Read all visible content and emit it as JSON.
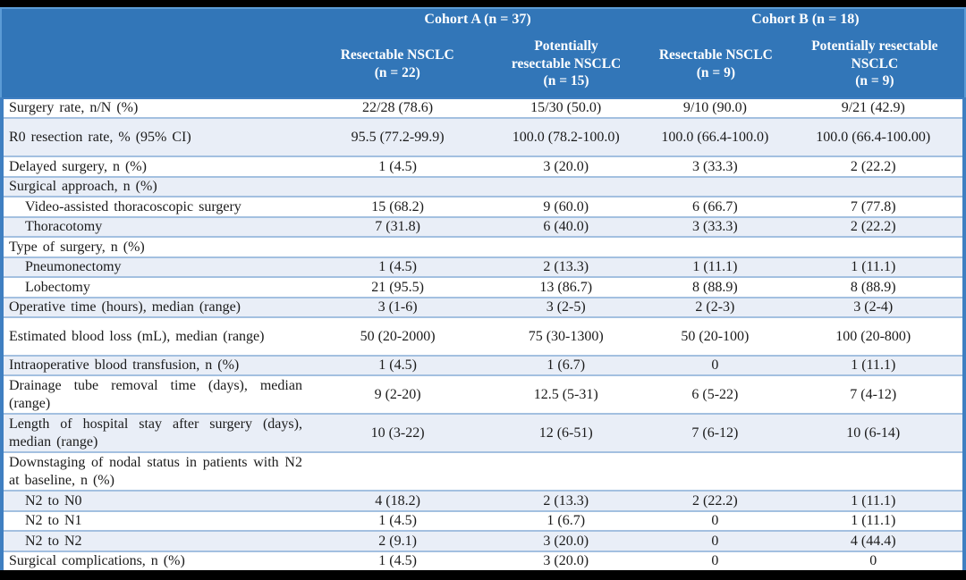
{
  "colors": {
    "header_bg": "#3276b8",
    "header_border": "#5b9bd5",
    "band_bg": "#e9eef7",
    "separator": "#a3c0e0",
    "side_border": "#3f7fc1",
    "frame": "#000000",
    "header_text": "#ffffff",
    "text": "#1b1b1b"
  },
  "table": {
    "header": {
      "cohort_a": "Cohort A (n = 37)",
      "cohort_b": "Cohort B (n = 18)",
      "columns": [
        "Resectable NSCLC\n(n = 22)",
        "Potentially\nresectable NSCLC\n(n = 15)",
        "Resectable NSCLC\n(n = 9)",
        "Potentially resectable\nNSCLC\n(n = 9)"
      ]
    },
    "rows": [
      {
        "label": "Surgery rate, n/N (%)",
        "indent": false,
        "tall": false,
        "values": [
          "22/28 (78.6)",
          "15/30 (50.0)",
          "9/10 (90.0)",
          "9/21 (42.9)"
        ]
      },
      {
        "label": "R0 resection rate, % (95% CI)",
        "indent": false,
        "tall": true,
        "values": [
          "95.5 (77.2-99.9)",
          "100.0 (78.2-100.0)",
          "100.0 (66.4-100.0)",
          "100.0 (66.4-100.00)"
        ]
      },
      {
        "label": "Delayed surgery, n (%)",
        "indent": false,
        "tall": false,
        "values": [
          "1 (4.5)",
          "3 (20.0)",
          "3 (33.3)",
          "2 (22.2)"
        ]
      },
      {
        "label": "Surgical approach, n (%)",
        "indent": false,
        "tall": false,
        "values": [
          "",
          "",
          "",
          ""
        ]
      },
      {
        "label": "Video-assisted thoracoscopic surgery",
        "indent": true,
        "tall": false,
        "values": [
          "15 (68.2)",
          "9 (60.0)",
          "6 (66.7)",
          "7 (77.8)"
        ]
      },
      {
        "label": "Thoracotomy",
        "indent": true,
        "tall": false,
        "values": [
          "7 (31.8)",
          "6 (40.0)",
          "3 (33.3)",
          "2 (22.2)"
        ]
      },
      {
        "label": "Type of surgery, n (%)",
        "indent": false,
        "tall": false,
        "values": [
          "",
          "",
          "",
          ""
        ]
      },
      {
        "label": "Pneumonectomy",
        "indent": true,
        "tall": false,
        "values": [
          "1 (4.5)",
          "2 (13.3)",
          "1 (11.1)",
          "1 (11.1)"
        ]
      },
      {
        "label": "Lobectomy",
        "indent": true,
        "tall": false,
        "values": [
          "21 (95.5)",
          "13 (86.7)",
          "8 (88.9)",
          "8 (88.9)"
        ]
      },
      {
        "label": "Operative time (hours), median (range)",
        "indent": false,
        "tall": false,
        "values": [
          "3 (1-6)",
          "3 (2-5)",
          "2 (2-3)",
          "3 (2-4)"
        ]
      },
      {
        "label": "Estimated blood loss (mL), median (range)",
        "indent": false,
        "tall": true,
        "values": [
          "50 (20-2000)",
          "75 (30-1300)",
          "50 (20-100)",
          "100 (20-800)"
        ]
      },
      {
        "label": "Intraoperative blood transfusion, n (%)",
        "indent": false,
        "tall": false,
        "values": [
          "1 (4.5)",
          "1 (6.7)",
          "0",
          "1 (11.1)"
        ]
      },
      {
        "label": "Drainage tube removal time (days), median (range)",
        "indent": false,
        "tall": true,
        "values": [
          "9 (2-20)",
          "12.5 (5-31)",
          "6 (5-22)",
          "7 (4-12)"
        ]
      },
      {
        "label": "Length of hospital stay after surgery (days), median (range)",
        "indent": false,
        "tall": true,
        "values": [
          "10 (3-22)",
          "12 (6-51)",
          "7 (6-12)",
          "10 (6-14)"
        ]
      },
      {
        "label": "Downstaging of nodal status in patients with N2 at baseline, n (%)",
        "indent": false,
        "tall": true,
        "values": [
          "",
          "",
          "",
          ""
        ]
      },
      {
        "label": "N2 to N0",
        "indent": true,
        "tall": false,
        "values": [
          "4 (18.2)",
          "2 (13.3)",
          "2 (22.2)",
          "1 (11.1)"
        ]
      },
      {
        "label": "N2 to N1",
        "indent": true,
        "tall": false,
        "values": [
          "1 (4.5)",
          "1 (6.7)",
          "0",
          "1 (11.1)"
        ]
      },
      {
        "label": "N2 to N2",
        "indent": true,
        "tall": false,
        "values": [
          "2 (9.1)",
          "3 (20.0)",
          "0",
          "4 (44.4)"
        ]
      },
      {
        "label": "Surgical complications, n (%)",
        "indent": false,
        "tall": false,
        "values": [
          "1 (4.5)",
          "3 (20.0)",
          "0",
          "0"
        ]
      }
    ]
  }
}
